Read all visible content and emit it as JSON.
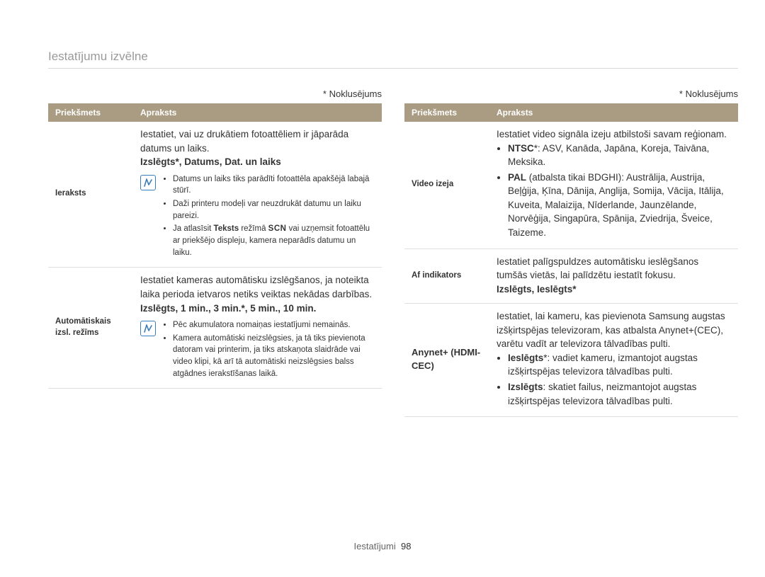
{
  "page_title": "Iestatījumu izvēlne",
  "default_label": "* Noklusējums",
  "table_headers": {
    "subject": "Priekšmets",
    "description": "Apraksts"
  },
  "left": {
    "rows": [
      {
        "subject": "Ieraksts",
        "intro": "Iestatiet, vai uz drukātiem fotoattēliem ir jāparāda datums un laiks.",
        "options": "Izslēgts*, Datums, Dat. un laiks",
        "notes": [
          "Datums un laiks tiks parādīti fotoattēla apakšējā labajā stūrī.",
          "Daži printeru modeļi var neuzdrukāt datumu un laiku pareizi.",
          "Ja atlasīsit <b>Teksts</b> režīmā <span class=\"scn\">SCN</span> vai uzņemsit fotoattēlu ar priekšējo displeju, kamera neparādīs datumu un laiku."
        ]
      },
      {
        "subject": "Automātiskais izsl. režīms",
        "intro": "Iestatiet kameras automātisku izslēgšanos, ja noteikta laika perioda ietvaros netiks veiktas nekādas darbības.",
        "options": "Izslēgts, 1 min., 3 min.*, 5 min., 10 min.",
        "notes": [
          "Pēc akumulatora nomaiņas iestatījumi nemainās.",
          "Kamera automātiski neizslēgsies, ja tā tiks pievienota datoram vai printerim, ja tiks atskaņota slaidrāde vai video klipi, kā arī tā automātiski neizslēgsies balss atgādnes ierakstīšanas laikā."
        ]
      }
    ]
  },
  "right": {
    "rows": [
      {
        "subject": "Video izeja",
        "intro": "Iestatiet video signāla izeju atbilstoši savam reģionam.",
        "items_html": [
          "<b>NTSC</b>*: ASV, Kanāda, Japāna, Koreja, Taivāna, Meksika.",
          "<b>PAL</b> (atbalsta tikai BDGHI): Austrālija, Austrija, Beļģija, Ķīna, Dānija, Anglija, Somija, Vācija, Itālija, Kuveita, Malaizija, Nīderlande, Jaunzēlande, Norvēģija, Singapūra, Spānija, Zviedrija, Šveice, Taizeme."
        ]
      },
      {
        "subject": "Af indikators",
        "intro": "Iestatiet palīgspuldzes automātisku ieslēgšanos tumšās vietās, lai palīdzētu iestatīt fokusu.",
        "options": "Izslēgts, Ieslēgts*"
      },
      {
        "subject": "Anynet+ (HDMI-CEC)",
        "intro": "Iestatiet, lai kameru, kas pievienota Samsung augstas izšķirtspējas televizoram, kas atbalsta Anynet+(CEC), varētu vadīt ar televizora tālvadības pulti.",
        "items_html": [
          "<b>Ieslēgts</b>*: vadiet kameru, izmantojot augstas izšķirtspējas televizora tālvadības pulti.",
          "<b>Izslēgts</b>: skatiet failus, neizmantojot augstas izšķirtspējas televizora tālvadības pulti."
        ]
      }
    ]
  },
  "pager": {
    "section": "Iestatījumi",
    "page": "98"
  },
  "colors": {
    "header_bg": "#a99c82",
    "title_color": "#9a9a9a",
    "border": "#e0e0e0",
    "icon_color": "#3b7db8"
  }
}
